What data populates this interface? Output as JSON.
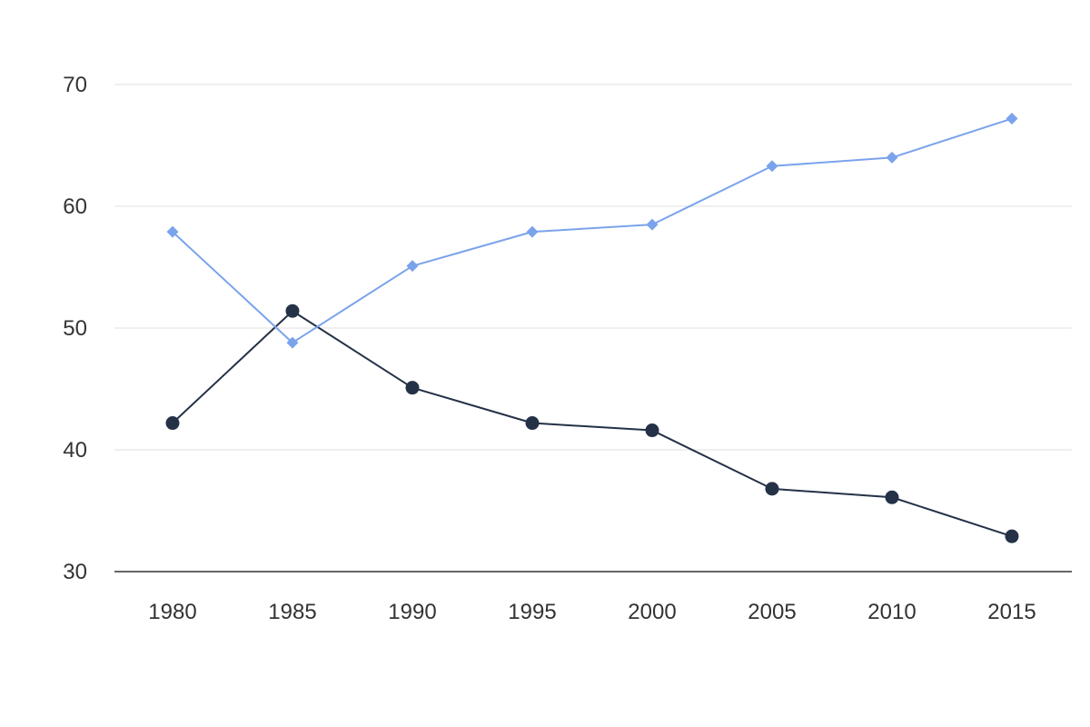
{
  "chart_data": {
    "type": "line",
    "title": "",
    "xlabel": "",
    "ylabel": "",
    "categories": [
      "1980",
      "1985",
      "1990",
      "1995",
      "2000",
      "2005",
      "2010",
      "2015"
    ],
    "ylim": [
      30,
      70
    ],
    "yticks": [
      "30",
      "40",
      "50",
      "60",
      "70"
    ],
    "grid": true,
    "legend": "none",
    "series": [
      {
        "values": [
          42.2,
          51.4,
          45.1,
          42.2,
          41.6,
          36.8,
          36.1,
          32.9
        ],
        "color": "#243147",
        "marker": "circle"
      },
      {
        "values": [
          57.9,
          48.8,
          55.1,
          57.9,
          58.5,
          63.3,
          64.0,
          67.2
        ],
        "color": "#7aa3ec",
        "marker": "diamond"
      }
    ]
  }
}
